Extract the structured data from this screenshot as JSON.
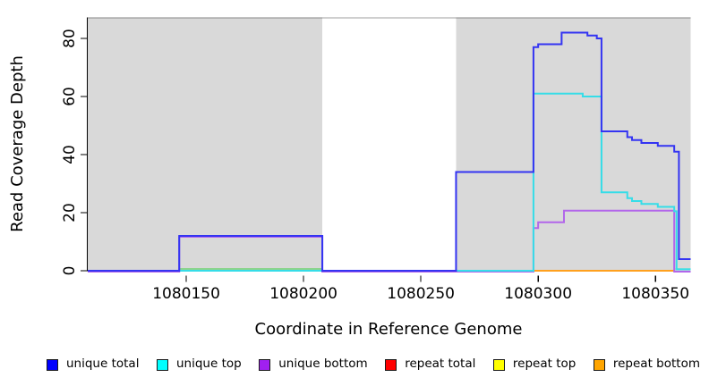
{
  "chart_data": {
    "type": "line",
    "subtype": "step-coverage",
    "title": "",
    "xlabel": "Coordinate in Reference Genome",
    "ylabel": "Read Coverage Depth",
    "xlim": [
      1080108,
      1080365
    ],
    "ylim": [
      0,
      87
    ],
    "x_ticks": [
      1080150,
      1080200,
      1080250,
      1080300,
      1080350
    ],
    "y_ticks": [
      0,
      20,
      40,
      60,
      80
    ],
    "grid": "off",
    "legend_position": "bottom",
    "background_color": "#ffffff",
    "plot_background_color": "#ffffff",
    "shaded_regions": [
      {
        "x0": 1080108,
        "x1": 1080208,
        "color": "#d9d9d9"
      },
      {
        "x0": 1080265,
        "x1": 1080365,
        "color": "#d9d9d9"
      }
    ],
    "top_border_color": "rgba(0,0,0,0.3)",
    "series": [
      {
        "name": "unique total",
        "color": "#3434f2",
        "legend_color": "#0000ff",
        "draw_offset_y": 0,
        "steps": [
          [
            1080108,
            0
          ],
          [
            1080147,
            12
          ],
          [
            1080208,
            0
          ],
          [
            1080265,
            34
          ],
          [
            1080298,
            77
          ],
          [
            1080300,
            78
          ],
          [
            1080310,
            82
          ],
          [
            1080321,
            81
          ],
          [
            1080325,
            80
          ],
          [
            1080327,
            48
          ],
          [
            1080338,
            46
          ],
          [
            1080340,
            45
          ],
          [
            1080344,
            44
          ],
          [
            1080351,
            43
          ],
          [
            1080358,
            41
          ],
          [
            1080360,
            4
          ]
        ],
        "end": 1080365
      },
      {
        "name": "unique top",
        "color": "#35dde8",
        "legend_color": "#00ffff",
        "draw_offset_y": 0,
        "steps": [
          [
            1080108,
            0
          ],
          [
            1080298,
            61
          ],
          [
            1080319,
            60
          ],
          [
            1080327,
            27
          ],
          [
            1080338,
            25
          ],
          [
            1080340,
            24
          ],
          [
            1080344,
            23
          ],
          [
            1080351,
            22
          ],
          [
            1080358,
            20.5
          ],
          [
            1080359,
            0.5
          ]
        ],
        "end": 1080365
      },
      {
        "name": "unique bottom",
        "color": "#b266ea",
        "legend_color": "#a020f0",
        "draw_offset_y": 1,
        "steps": [
          [
            1080108,
            0
          ],
          [
            1080147,
            12
          ],
          [
            1080208,
            0
          ],
          [
            1080298,
            15
          ],
          [
            1080300,
            17
          ],
          [
            1080311,
            21
          ],
          [
            1080358,
            0
          ]
        ],
        "end": 1080365
      },
      {
        "name": "repeat total",
        "color": "#ee3355",
        "legend_color": "#ff0000",
        "steps": [
          [
            1080108,
            0
          ]
        ],
        "end": 1080365,
        "visible_zero_segment": [
          1080265,
          1080298
        ]
      },
      {
        "name": "repeat top",
        "color": "#ffff00",
        "legend_color": "#ffff00",
        "steps": [
          [
            1080108,
            0
          ]
        ],
        "end": 1080365,
        "visible_zero_segment": null
      },
      {
        "name": "repeat bottom",
        "color": "#ffa01e",
        "legend_color": "#ffa500",
        "steps": [
          [
            1080108,
            0
          ]
        ],
        "end": 1080365,
        "visible_zero_segment": [
          1080298,
          1080358
        ]
      }
    ],
    "zero_line_artifacts": [
      {
        "x0": 1080147,
        "x1": 1080208,
        "color": "#74d374",
        "note": "overlapping cyan+yellow zero lines render green"
      },
      {
        "x0": 1080358,
        "x1": 1080365,
        "color": "#9fe4c9",
        "note": "pale cyan residual near zero at right edge"
      }
    ]
  },
  "legend": {
    "items": [
      {
        "label": "unique total",
        "color": "#0000ff"
      },
      {
        "label": "unique top",
        "color": "#00ffff"
      },
      {
        "label": "unique bottom",
        "color": "#a020f0"
      },
      {
        "label": "repeat total",
        "color": "#ff0000"
      },
      {
        "label": "repeat top",
        "color": "#ffff00"
      },
      {
        "label": "repeat bottom",
        "color": "#ffa500"
      }
    ]
  }
}
